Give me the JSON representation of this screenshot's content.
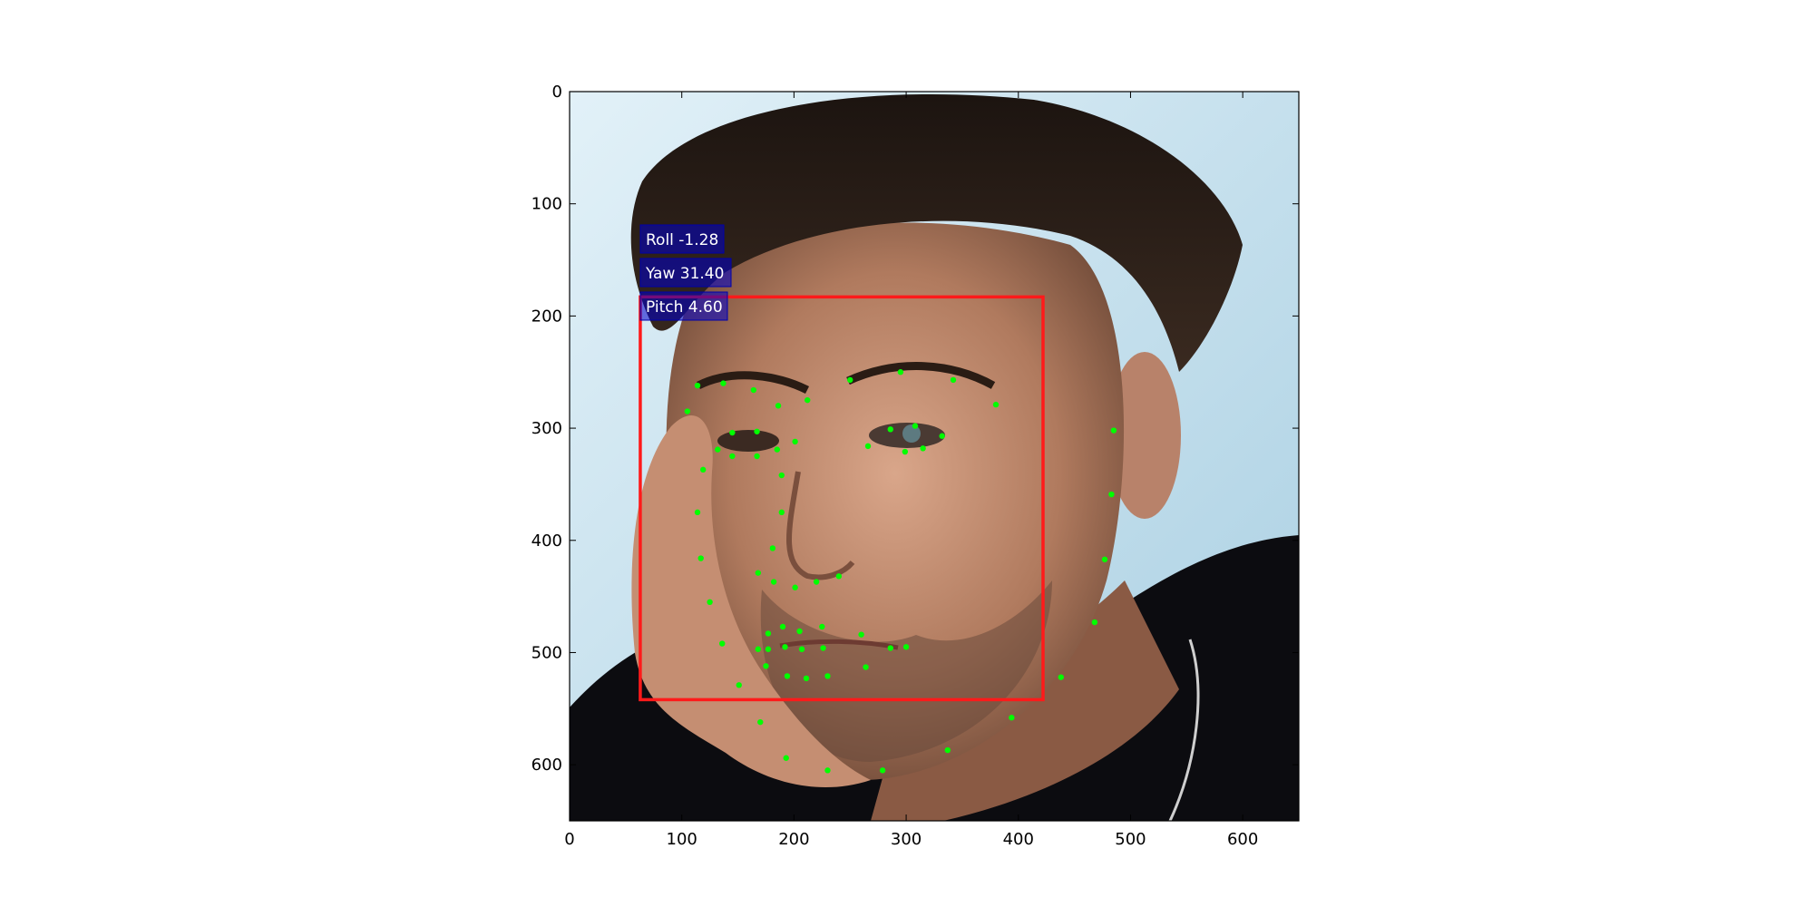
{
  "figure": {
    "image_extent": {
      "x": [
        0,
        650
      ],
      "y": [
        650,
        0
      ]
    },
    "x_ticks": [
      0,
      100,
      200,
      300,
      400,
      500,
      600
    ],
    "y_ticks": [
      0,
      100,
      200,
      300,
      400,
      500,
      600
    ],
    "image_description": "Head-and-shoulders photo of a man, hand resting on cheek, light blue background, dark shirt"
  },
  "head_pose": {
    "roll_label": "Roll -1.28",
    "yaw_label": "Yaw 31.40",
    "pitch_label": "Pitch 4.60",
    "label_bg_color": "#0000cc"
  },
  "face_box": {
    "x0": 63,
    "y0": 183,
    "x1": 422,
    "y1": 542,
    "color": "#ff1a1a"
  },
  "landmarks": {
    "color": "#00ff00",
    "points": [
      [
        105,
        285
      ],
      [
        114,
        262
      ],
      [
        137,
        260
      ],
      [
        164,
        266
      ],
      [
        186,
        280
      ],
      [
        212,
        275
      ],
      [
        250,
        257
      ],
      [
        295,
        250
      ],
      [
        342,
        257
      ],
      [
        380,
        279
      ],
      [
        132,
        319
      ],
      [
        145,
        304
      ],
      [
        167,
        303
      ],
      [
        185,
        319
      ],
      [
        201,
        312
      ],
      [
        167,
        325
      ],
      [
        145,
        325
      ],
      [
        119,
        337
      ],
      [
        266,
        316
      ],
      [
        286,
        301
      ],
      [
        299,
        321
      ],
      [
        315,
        318
      ],
      [
        332,
        307
      ],
      [
        308,
        298
      ],
      [
        189,
        342
      ],
      [
        189,
        375
      ],
      [
        181,
        407
      ],
      [
        168,
        429
      ],
      [
        182,
        437
      ],
      [
        201,
        442
      ],
      [
        220,
        437
      ],
      [
        240,
        432
      ],
      [
        114,
        375
      ],
      [
        117,
        416
      ],
      [
        125,
        455
      ],
      [
        136,
        492
      ],
      [
        151,
        529
      ],
      [
        170,
        562
      ],
      [
        193,
        594
      ],
      [
        230,
        605
      ],
      [
        279,
        605
      ],
      [
        337,
        587
      ],
      [
        394,
        558
      ],
      [
        438,
        522
      ],
      [
        468,
        473
      ],
      [
        477,
        417
      ],
      [
        483,
        359
      ],
      [
        485,
        302
      ],
      [
        177,
        483
      ],
      [
        190,
        477
      ],
      [
        205,
        481
      ],
      [
        225,
        477
      ],
      [
        260,
        484
      ],
      [
        168,
        497
      ],
      [
        177,
        497
      ],
      [
        192,
        495
      ],
      [
        207,
        497
      ],
      [
        226,
        496
      ],
      [
        264,
        513
      ],
      [
        286,
        496
      ],
      [
        175,
        512
      ],
      [
        194,
        521
      ],
      [
        211,
        523
      ],
      [
        230,
        521
      ],
      [
        300,
        495
      ]
    ]
  }
}
